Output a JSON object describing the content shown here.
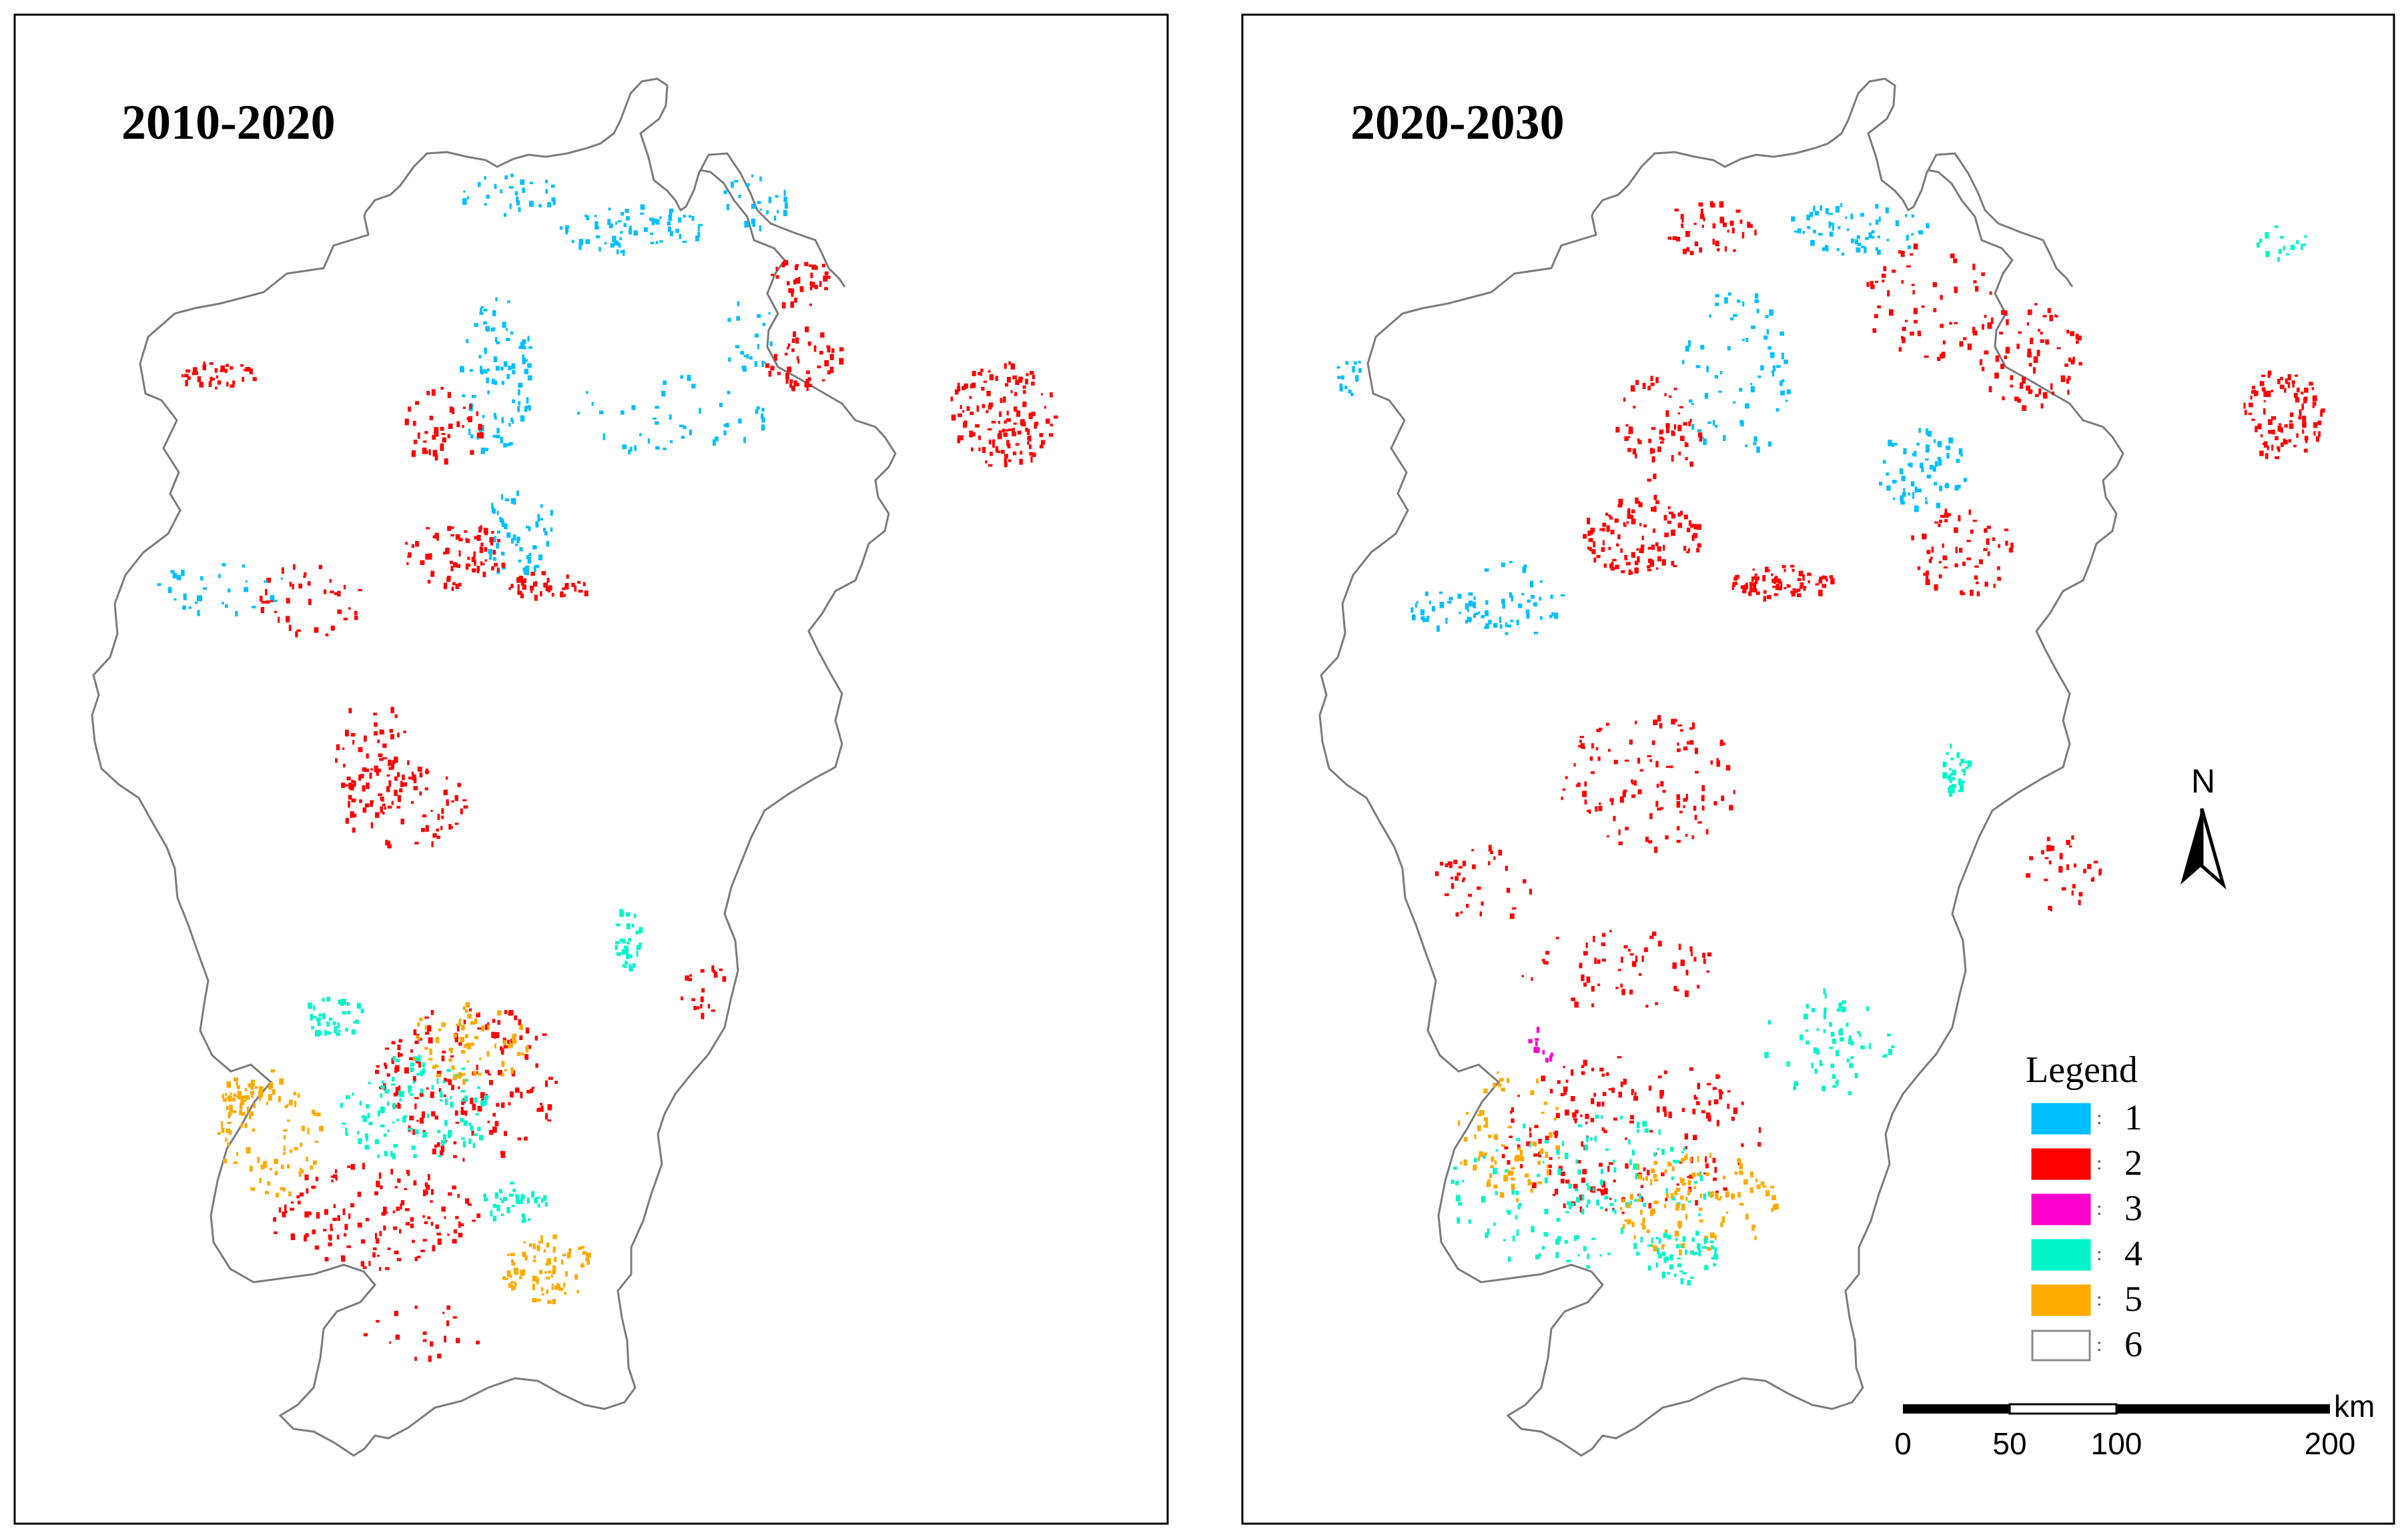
{
  "panels": [
    {
      "title": "2010-2020"
    },
    {
      "title": "2020-2030"
    }
  ],
  "legend": {
    "title": "Legend",
    "items": [
      {
        "label": "1",
        "color": "#00bfff"
      },
      {
        "label": "2",
        "color": "#ff0000"
      },
      {
        "label": "3",
        "color": "#ff00cc"
      },
      {
        "label": "4",
        "color": "#00f5c8"
      },
      {
        "label": "5",
        "color": "#ffaa00"
      },
      {
        "label": "6",
        "color": "#ffffff"
      }
    ]
  },
  "north_arrow": {
    "label": "N"
  },
  "scale_bar": {
    "unit": "km",
    "ticks": [
      "0",
      "50",
      "100",
      "200"
    ]
  }
}
